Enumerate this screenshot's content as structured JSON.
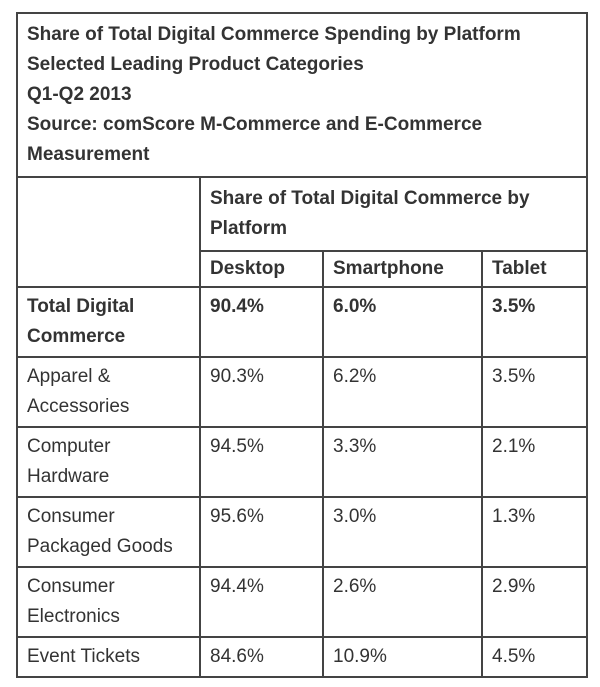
{
  "title_lines": [
    "Share of Total Digital Commerce Spending by Platform",
    "Selected Leading Product Categories",
    "Q1-Q2 2013",
    "Source: comScore M-Commerce and E-Commerce Measurement"
  ],
  "group_header": "Share of Total Digital Commerce by Platform",
  "columns": [
    "Desktop",
    "Smartphone",
    "Tablet"
  ],
  "rows": [
    {
      "category": "Total Digital Commerce",
      "values": [
        "90.4%",
        "6.0%",
        "3.5%"
      ],
      "bold": true
    },
    {
      "category": "Apparel & Accessories",
      "values": [
        "90.3%",
        "6.2%",
        "3.5%"
      ],
      "bold": false
    },
    {
      "category": "Computer Hardware",
      "values": [
        "94.5%",
        "3.3%",
        "2.1%"
      ],
      "bold": false
    },
    {
      "category": "Consumer Packaged Goods",
      "values": [
        "95.6%",
        "3.0%",
        "1.3%"
      ],
      "bold": false
    },
    {
      "category": "Consumer Electronics",
      "values": [
        "94.4%",
        "2.6%",
        "2.9%"
      ],
      "bold": false
    },
    {
      "category": "Event Tickets",
      "values": [
        "84.6%",
        "10.9%",
        "4.5%"
      ],
      "bold": false
    }
  ]
}
